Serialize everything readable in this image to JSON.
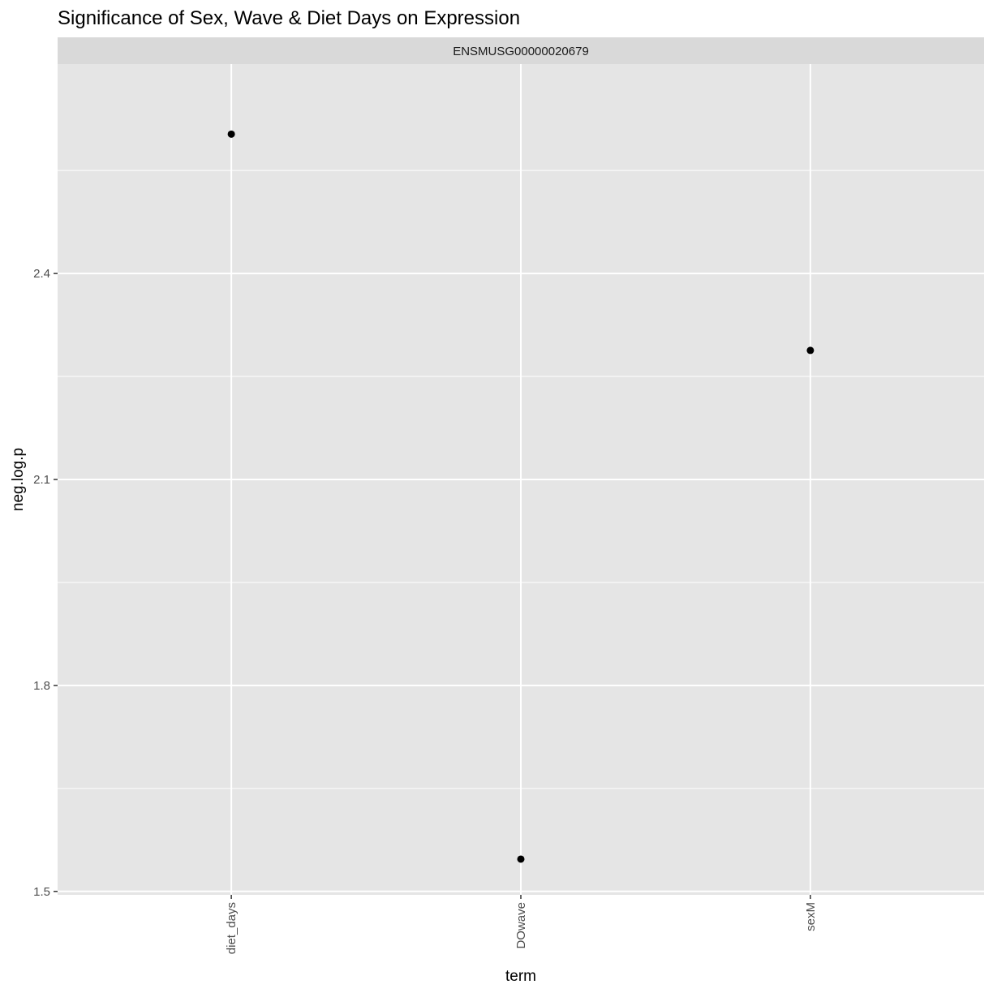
{
  "chart_data": {
    "type": "scatter",
    "title": "Significance of Sex, Wave & Diet Days on Expression",
    "facet_label": "ENSMUSG00000020679",
    "xlabel": "term",
    "ylabel": "neg.log.p",
    "categories": [
      "diet_days",
      "DOwave",
      "sexM"
    ],
    "values": [
      2.603,
      1.547,
      2.288
    ],
    "ylim": [
      1.495,
      2.705
    ],
    "yticks": [
      1.5,
      1.8,
      2.1,
      2.4
    ],
    "ytick_labels": [
      "1.5",
      "1.8",
      "2.1",
      "2.4"
    ],
    "grid": true,
    "legend": "none",
    "colors": {
      "panel": "#e5e5e5",
      "strip": "#d9d9d9",
      "grid": "#ffffff",
      "point": "#000000"
    }
  }
}
